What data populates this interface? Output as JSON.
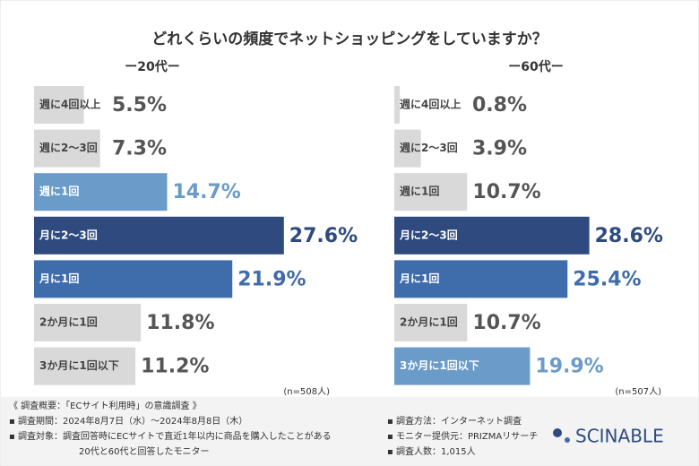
{
  "title": "どれくらいの頻度でネットショッピングをしていますか？",
  "chart_data": [
    {
      "type": "bar",
      "orientation": "horizontal",
      "title": "ー20代ー",
      "categories": [
        "週に4回以上",
        "週に2〜3回",
        "週に1回",
        "月に2〜3回",
        "月に1回",
        "2か月に1回",
        "3か月に1回以下"
      ],
      "values": [
        5.5,
        7.3,
        14.7,
        27.6,
        21.9,
        11.8,
        11.2
      ],
      "value_labels": [
        "5.5%",
        "7.3%",
        "14.7%",
        "27.6%",
        "21.9%",
        "11.8%",
        "11.2%"
      ],
      "colors": [
        "#d9d9d9",
        "#d9d9d9",
        "#6b9bc8",
        "#2e4a7e",
        "#3f6cab",
        "#d9d9d9",
        "#d9d9d9"
      ],
      "note": "(n=508人)"
    },
    {
      "type": "bar",
      "orientation": "horizontal",
      "title": "ー60代ー",
      "categories": [
        "週に4回以上",
        "週に2〜3回",
        "週に1回",
        "月に2〜3回",
        "月に1回",
        "2か月に1回",
        "3か月に1回以下"
      ],
      "values": [
        0.8,
        3.9,
        10.7,
        28.6,
        25.4,
        10.7,
        19.9
      ],
      "value_labels": [
        "0.8%",
        "3.9%",
        "10.7%",
        "28.6%",
        "25.4%",
        "10.7%",
        "19.9%"
      ],
      "colors": [
        "#d9d9d9",
        "#d9d9d9",
        "#d9d9d9",
        "#2e4a7e",
        "#3f6cab",
        "#d9d9d9",
        "#6b9bc8"
      ],
      "note": "(n=507人)"
    }
  ],
  "footer": {
    "left": [
      "《 調査概要：「ECサイト利用時」の意識調査 》",
      "▪ 調査期間：2024年8月7日（水）〜2024年8月8日（木）",
      "▪ 調査対象：調査回答時にECサイトで直近1年以内に商品を購入したことがある",
      "20代と60代と回答したモニター"
    ],
    "right": [
      "▪ 調査方法：インターネット調査",
      "▪ モニター提供元：PRIZMAリサーチ",
      "▪ 調査人数：1,015人"
    ],
    "logo": "SCINABLE"
  }
}
